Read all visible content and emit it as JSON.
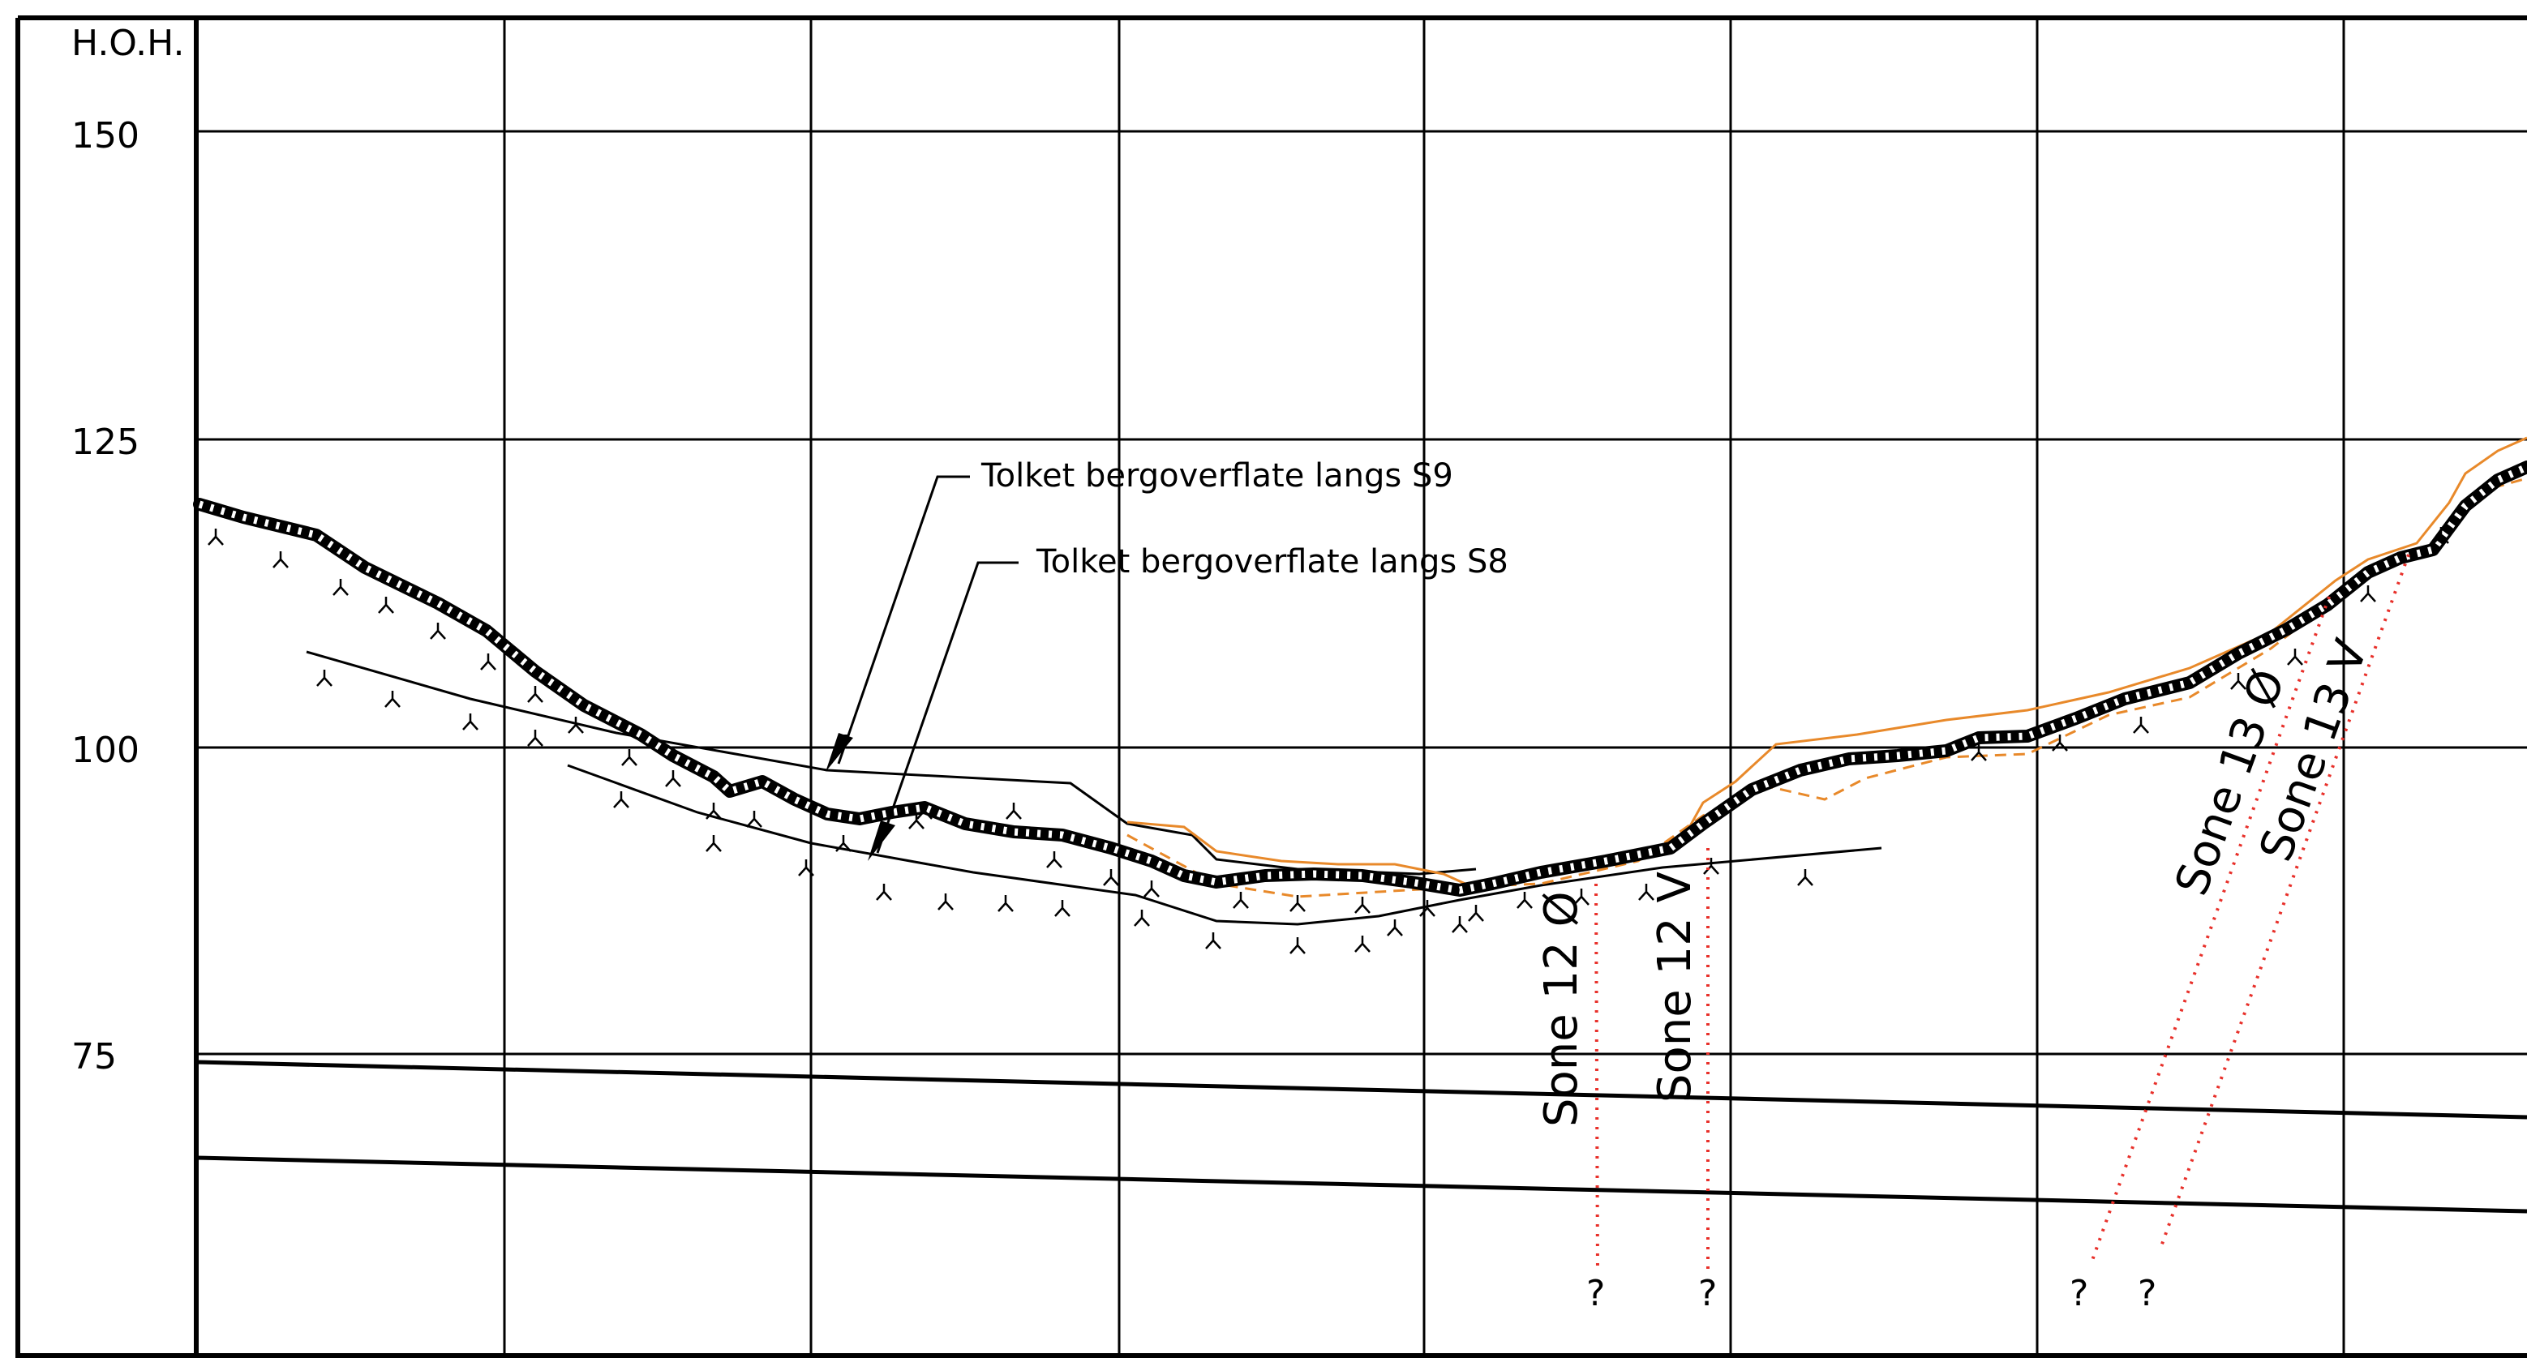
{
  "axis": {
    "title": "H.O.H.",
    "ticks": [
      {
        "label": "150",
        "value": 150
      },
      {
        "label": "125",
        "value": 125
      },
      {
        "label": "100",
        "value": 100
      },
      {
        "label": "75",
        "value": 75
      }
    ]
  },
  "callouts": {
    "s9": "Tolket bergoverflate langs S9",
    "s8": "Tolket bergoverflate langs S8"
  },
  "zones": {
    "z12o": "Sone 12 Ø",
    "z12v": "Sone 12 V",
    "z13o": "Sone 13 Ø",
    "z13v": "Sone 13 V"
  },
  "unknowns": [
    "?",
    "?",
    "?",
    "?"
  ],
  "colors": {
    "line": "#000000",
    "terrain": "#e8892a",
    "zone": "#e8302a"
  }
}
